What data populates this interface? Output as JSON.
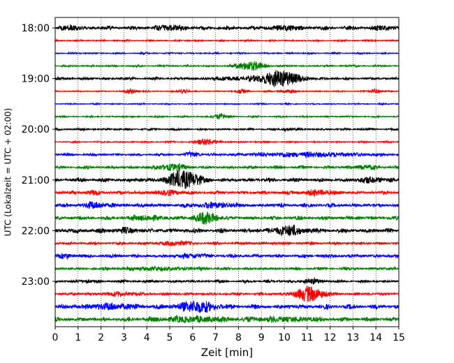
{
  "chart_data": {
    "type": "line",
    "xlabel": "Zeit  [min]",
    "ylabel": "UTC (Lokalzeit = UTC + 02:00)",
    "xlim": [
      0,
      15
    ],
    "x_ticks": [
      "0",
      "1",
      "2",
      "3",
      "4",
      "5",
      "6",
      "7",
      "8",
      "9",
      "10",
      "11",
      "12",
      "13",
      "14",
      "15"
    ],
    "y_ticks": [
      {
        "label": "18:00",
        "row": 0
      },
      {
        "label": "19:00",
        "row": 4
      },
      {
        "label": "20:00",
        "row": 8
      },
      {
        "label": "21:00",
        "row": 12
      },
      {
        "label": "22:00",
        "row": 16
      },
      {
        "label": "23:00",
        "row": 20
      }
    ],
    "grid": "vertical-dotted",
    "row_minutes": 15,
    "row_colors": [
      "#000000",
      "#ff0000",
      "#0000ff",
      "#008000"
    ],
    "rows": [
      {
        "start": "18:00",
        "noise": 0.28,
        "events": [
          [
            0.7,
            0.35,
            0.4
          ],
          [
            5.1,
            0.45,
            0.5
          ],
          [
            10.0,
            0.3,
            0.7
          ],
          [
            14.2,
            0.3,
            0.4
          ]
        ]
      },
      {
        "start": "18:15",
        "noise": 0.12,
        "events": []
      },
      {
        "start": "18:30",
        "noise": 0.12,
        "events": []
      },
      {
        "start": "18:45",
        "noise": 0.14,
        "events": [
          [
            8.5,
            0.85,
            0.6
          ]
        ]
      },
      {
        "start": "19:00",
        "noise": 0.2,
        "events": [
          [
            9.8,
            1.5,
            0.9
          ],
          [
            7.5,
            0.25,
            0.8
          ]
        ]
      },
      {
        "start": "19:15",
        "noise": 0.1,
        "events": [
          [
            3.3,
            0.45,
            0.25
          ],
          [
            5.6,
            0.45,
            0.25
          ],
          [
            8.1,
            0.4,
            0.25
          ],
          [
            10.2,
            0.35,
            0.3
          ],
          [
            14.0,
            0.4,
            0.25
          ]
        ]
      },
      {
        "start": "19:30",
        "noise": 0.1,
        "events": []
      },
      {
        "start": "19:45",
        "noise": 0.12,
        "events": [
          [
            7.2,
            0.5,
            0.3
          ]
        ]
      },
      {
        "start": "20:00",
        "noise": 0.16,
        "events": [
          [
            10.1,
            0.3,
            0.2
          ]
        ]
      },
      {
        "start": "20:15",
        "noise": 0.12,
        "events": [
          [
            6.6,
            0.6,
            0.45
          ]
        ]
      },
      {
        "start": "20:30",
        "noise": 0.18,
        "events": [
          [
            6.0,
            0.4,
            0.3
          ],
          [
            11.0,
            0.35,
            2.5
          ]
        ]
      },
      {
        "start": "20:45",
        "noise": 0.22,
        "events": [
          [
            5.1,
            0.55,
            0.6
          ],
          [
            13.5,
            0.3,
            0.5
          ]
        ]
      },
      {
        "start": "21:00",
        "noise": 0.28,
        "events": [
          [
            5.6,
            1.7,
            0.7
          ],
          [
            13.8,
            0.45,
            0.6
          ]
        ]
      },
      {
        "start": "21:15",
        "noise": 0.25,
        "events": [
          [
            1.6,
            0.3,
            0.3
          ],
          [
            5.0,
            0.35,
            0.6
          ],
          [
            11.5,
            0.35,
            0.8
          ]
        ]
      },
      {
        "start": "21:30",
        "noise": 0.28,
        "events": [
          [
            1.8,
            0.5,
            0.5
          ],
          [
            7.0,
            0.35,
            1.0
          ]
        ]
      },
      {
        "start": "21:45",
        "noise": 0.28,
        "events": [
          [
            6.6,
            1.0,
            0.5
          ],
          [
            4.0,
            0.35,
            0.7
          ]
        ]
      },
      {
        "start": "22:00",
        "noise": 0.32,
        "events": [
          [
            10.2,
            0.8,
            0.7
          ],
          [
            3.0,
            0.3,
            0.6
          ]
        ]
      },
      {
        "start": "22:15",
        "noise": 0.22,
        "events": [
          [
            5.2,
            0.35,
            0.6
          ]
        ]
      },
      {
        "start": "22:30",
        "noise": 0.26,
        "events": [
          [
            0.4,
            0.35,
            0.3
          ],
          [
            6.0,
            0.35,
            0.5
          ]
        ]
      },
      {
        "start": "22:45",
        "noise": 0.2,
        "events": [
          [
            4.5,
            0.25,
            1.5
          ]
        ]
      },
      {
        "start": "23:00",
        "noise": 0.2,
        "events": [
          [
            1.3,
            0.25,
            0.3
          ],
          [
            11.2,
            0.35,
            0.5
          ]
        ]
      },
      {
        "start": "23:15",
        "noise": 0.22,
        "events": [
          [
            11.1,
            1.4,
            0.6
          ],
          [
            2.8,
            0.25,
            0.8
          ]
        ]
      },
      {
        "start": "23:30",
        "noise": 0.32,
        "events": [
          [
            6.2,
            1.0,
            0.8
          ],
          [
            2.5,
            0.45,
            1.0
          ]
        ]
      },
      {
        "start": "23:45",
        "noise": 0.3,
        "events": [
          [
            6.0,
            0.4,
            1.5
          ],
          [
            10.0,
            0.3,
            1.5
          ]
        ]
      }
    ]
  }
}
